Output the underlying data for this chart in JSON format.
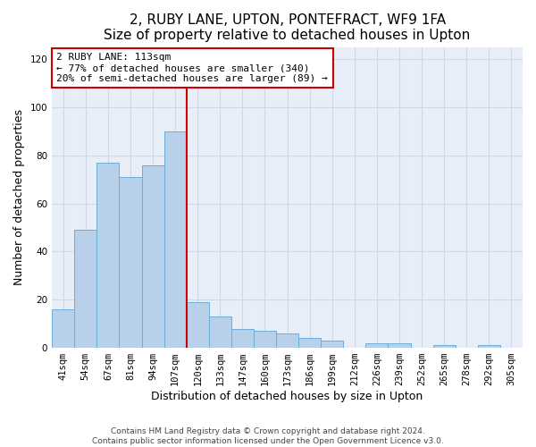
{
  "title": "2, RUBY LANE, UPTON, PONTEFRACT, WF9 1FA",
  "subtitle": "Size of property relative to detached houses in Upton",
  "xlabel": "Distribution of detached houses by size in Upton",
  "ylabel": "Number of detached properties",
  "categories": [
    "41sqm",
    "54sqm",
    "67sqm",
    "81sqm",
    "94sqm",
    "107sqm",
    "120sqm",
    "133sqm",
    "147sqm",
    "160sqm",
    "173sqm",
    "186sqm",
    "199sqm",
    "212sqm",
    "226sqm",
    "239sqm",
    "252sqm",
    "265sqm",
    "278sqm",
    "292sqm",
    "305sqm"
  ],
  "values": [
    16,
    49,
    77,
    71,
    76,
    90,
    19,
    13,
    8,
    7,
    6,
    4,
    3,
    0,
    2,
    2,
    0,
    1,
    0,
    1,
    0
  ],
  "bar_color": "#b8d0ea",
  "bar_edge_color": "#6aaed6",
  "vline_x": 5.5,
  "vline_color": "#cc0000",
  "annotation_text": "2 RUBY LANE: 113sqm\n← 77% of detached houses are smaller (340)\n20% of semi-detached houses are larger (89) →",
  "annotation_box_color": "#ffffff",
  "annotation_box_edge_color": "#cc0000",
  "ylim": [
    0,
    125
  ],
  "yticks": [
    0,
    20,
    40,
    60,
    80,
    100,
    120
  ],
  "grid_color": "#d0d8e8",
  "background_color": "#e8eef8",
  "footer": "Contains HM Land Registry data © Crown copyright and database right 2024.\nContains public sector information licensed under the Open Government Licence v3.0.",
  "title_fontsize": 11,
  "xlabel_fontsize": 9,
  "ylabel_fontsize": 9,
  "tick_fontsize": 7.5,
  "annotation_fontsize": 8,
  "footer_fontsize": 6.5
}
